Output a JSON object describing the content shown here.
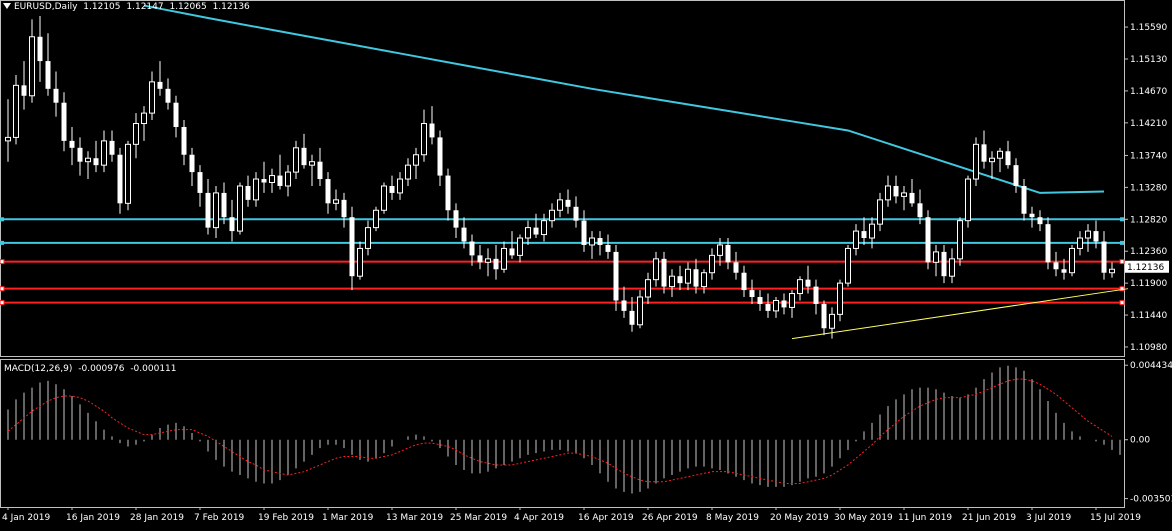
{
  "header": {
    "symbol": "EURUSD,Daily",
    "ohlc": [
      "1.12105",
      "1.12147",
      "1.12065",
      "1.12136"
    ]
  },
  "macd": {
    "label": "MACD(12,26,9)",
    "value1": "-0.000976",
    "value2": "-0.000111",
    "y_ticks": [
      "0.004434",
      "0.00",
      "-0.003501"
    ]
  },
  "current_price": "1.12136",
  "colors": {
    "background": "#000000",
    "grid": "#c0c0c0",
    "bull": "#ffffff",
    "bear": "#ffffff",
    "ma": "#40c8e0",
    "h_cyan": "#40c8e0",
    "h_red": "#ff2020",
    "trend": "#ffff60",
    "signal": "#ff2020"
  },
  "chart_data": {
    "type": "candlestick",
    "price_ticks": [
      "1.15590",
      "1.15130",
      "1.14670",
      "1.14210",
      "1.13740",
      "1.13280",
      "1.12820",
      "1.12360",
      "1.11900",
      "1.11440",
      "1.10980"
    ],
    "date_labels": [
      "4 Jan 2019",
      "16 Jan 2019",
      "28 Jan 2019",
      "7 Feb 2019",
      "19 Feb 2019",
      "1 Mar 2019",
      "13 Mar 2019",
      "25 Mar 2019",
      "4 Apr 2019",
      "16 Apr 2019",
      "26 Apr 2019",
      "8 May 2019",
      "20 May 2019",
      "30 May 2019",
      "11 Jun 2019",
      "21 Jun 2019",
      "3 Jul 2019",
      "15 Jul 2019"
    ],
    "date_index": [
      0,
      8,
      16,
      24,
      32,
      40,
      48,
      56,
      64,
      72,
      80,
      88,
      96,
      104,
      112,
      120,
      128,
      136
    ],
    "ohlc": [
      [
        1.1395,
        1.1455,
        1.1365,
        1.14
      ],
      [
        1.14,
        1.149,
        1.139,
        1.1475
      ],
      [
        1.1475,
        1.151,
        1.144,
        1.146
      ],
      [
        1.146,
        1.157,
        1.145,
        1.1545
      ],
      [
        1.1545,
        1.1575,
        1.148,
        1.151
      ],
      [
        1.151,
        1.155,
        1.146,
        1.147
      ],
      [
        1.147,
        1.1495,
        1.143,
        1.145
      ],
      [
        1.145,
        1.1465,
        1.138,
        1.1395
      ],
      [
        1.1395,
        1.1415,
        1.136,
        1.1385
      ],
      [
        1.1385,
        1.14,
        1.1345,
        1.1365
      ],
      [
        1.1365,
        1.138,
        1.134,
        1.137
      ],
      [
        1.137,
        1.1395,
        1.135,
        1.136
      ],
      [
        1.136,
        1.141,
        1.135,
        1.1395
      ],
      [
        1.1395,
        1.141,
        1.1365,
        1.1375
      ],
      [
        1.1375,
        1.1385,
        1.129,
        1.1305
      ],
      [
        1.1305,
        1.1395,
        1.1295,
        1.139
      ],
      [
        1.139,
        1.1435,
        1.137,
        1.142
      ],
      [
        1.142,
        1.1445,
        1.1395,
        1.1435
      ],
      [
        1.1435,
        1.1495,
        1.1425,
        1.148
      ],
      [
        1.148,
        1.151,
        1.146,
        1.147
      ],
      [
        1.147,
        1.1485,
        1.144,
        1.145
      ],
      [
        1.145,
        1.146,
        1.14,
        1.1415
      ],
      [
        1.1415,
        1.1425,
        1.136,
        1.1375
      ],
      [
        1.1375,
        1.1385,
        1.133,
        1.135
      ],
      [
        1.135,
        1.136,
        1.13,
        1.132
      ],
      [
        1.132,
        1.134,
        1.126,
        1.127
      ],
      [
        1.127,
        1.133,
        1.1255,
        1.132
      ],
      [
        1.132,
        1.1335,
        1.1275,
        1.1285
      ],
      [
        1.1285,
        1.131,
        1.125,
        1.1265
      ],
      [
        1.1265,
        1.1335,
        1.126,
        1.133
      ],
      [
        1.133,
        1.1345,
        1.13,
        1.131
      ],
      [
        1.131,
        1.135,
        1.13,
        1.134
      ],
      [
        1.134,
        1.1365,
        1.132,
        1.1335
      ],
      [
        1.1335,
        1.1355,
        1.132,
        1.1345
      ],
      [
        1.1345,
        1.1375,
        1.1325,
        1.133
      ],
      [
        1.133,
        1.136,
        1.1315,
        1.135
      ],
      [
        1.135,
        1.1395,
        1.134,
        1.1385
      ],
      [
        1.1385,
        1.1405,
        1.1355,
        1.136
      ],
      [
        1.136,
        1.1375,
        1.133,
        1.1365
      ],
      [
        1.1365,
        1.1385,
        1.133,
        1.134
      ],
      [
        1.134,
        1.135,
        1.129,
        1.1305
      ],
      [
        1.1305,
        1.1325,
        1.1295,
        1.131
      ],
      [
        1.131,
        1.132,
        1.127,
        1.1285
      ],
      [
        1.1285,
        1.13,
        1.118,
        1.12
      ],
      [
        1.12,
        1.125,
        1.1195,
        1.124
      ],
      [
        1.124,
        1.128,
        1.123,
        1.127
      ],
      [
        1.127,
        1.13,
        1.1265,
        1.1295
      ],
      [
        1.1295,
        1.1335,
        1.129,
        1.133
      ],
      [
        1.133,
        1.1345,
        1.131,
        1.132
      ],
      [
        1.132,
        1.135,
        1.131,
        1.134
      ],
      [
        1.134,
        1.137,
        1.133,
        1.136
      ],
      [
        1.136,
        1.1385,
        1.134,
        1.1375
      ],
      [
        1.1375,
        1.144,
        1.1365,
        1.142
      ],
      [
        1.142,
        1.1445,
        1.139,
        1.14
      ],
      [
        1.14,
        1.141,
        1.133,
        1.1345
      ],
      [
        1.1345,
        1.1355,
        1.128,
        1.1295
      ],
      [
        1.1295,
        1.1305,
        1.1255,
        1.127
      ],
      [
        1.127,
        1.1285,
        1.124,
        1.125
      ],
      [
        1.125,
        1.126,
        1.1215,
        1.123
      ],
      [
        1.123,
        1.1245,
        1.121,
        1.122
      ],
      [
        1.122,
        1.124,
        1.12,
        1.1225
      ],
      [
        1.1225,
        1.1245,
        1.1195,
        1.121
      ],
      [
        1.121,
        1.125,
        1.1205,
        1.124
      ],
      [
        1.124,
        1.1265,
        1.1225,
        1.123
      ],
      [
        1.123,
        1.126,
        1.122,
        1.1255
      ],
      [
        1.1255,
        1.128,
        1.1245,
        1.127
      ],
      [
        1.127,
        1.129,
        1.1255,
        1.126
      ],
      [
        1.126,
        1.129,
        1.125,
        1.128
      ],
      [
        1.128,
        1.1305,
        1.127,
        1.1295
      ],
      [
        1.1295,
        1.132,
        1.1285,
        1.131
      ],
      [
        1.131,
        1.1325,
        1.129,
        1.13
      ],
      [
        1.13,
        1.1315,
        1.127,
        1.128
      ],
      [
        1.128,
        1.1295,
        1.1235,
        1.1245
      ],
      [
        1.1245,
        1.1265,
        1.1225,
        1.1255
      ],
      [
        1.1255,
        1.1265,
        1.123,
        1.1245
      ],
      [
        1.1245,
        1.126,
        1.1225,
        1.1235
      ],
      [
        1.1235,
        1.1245,
        1.115,
        1.1165
      ],
      [
        1.1165,
        1.1185,
        1.114,
        1.115
      ],
      [
        1.115,
        1.117,
        1.112,
        1.113
      ],
      [
        1.113,
        1.118,
        1.1125,
        1.117
      ],
      [
        1.117,
        1.1205,
        1.116,
        1.1195
      ],
      [
        1.1195,
        1.1235,
        1.1185,
        1.1225
      ],
      [
        1.1225,
        1.1235,
        1.1175,
        1.1185
      ],
      [
        1.1185,
        1.121,
        1.117,
        1.12
      ],
      [
        1.12,
        1.1215,
        1.118,
        1.119
      ],
      [
        1.119,
        1.122,
        1.118,
        1.121
      ],
      [
        1.121,
        1.1225,
        1.1175,
        1.1185
      ],
      [
        1.1185,
        1.121,
        1.1175,
        1.1205
      ],
      [
        1.1205,
        1.124,
        1.1195,
        1.123
      ],
      [
        1.123,
        1.1255,
        1.1215,
        1.1245
      ],
      [
        1.1245,
        1.1255,
        1.121,
        1.122
      ],
      [
        1.122,
        1.1235,
        1.1195,
        1.1205
      ],
      [
        1.1205,
        1.1215,
        1.117,
        1.118
      ],
      [
        1.118,
        1.1195,
        1.116,
        1.117
      ],
      [
        1.117,
        1.118,
        1.115,
        1.116
      ],
      [
        1.116,
        1.1175,
        1.114,
        1.115
      ],
      [
        1.115,
        1.117,
        1.114,
        1.1165
      ],
      [
        1.1165,
        1.1175,
        1.1145,
        1.1155
      ],
      [
        1.1155,
        1.118,
        1.114,
        1.1175
      ],
      [
        1.1175,
        1.12,
        1.1165,
        1.1195
      ],
      [
        1.1195,
        1.1215,
        1.1175,
        1.1185
      ],
      [
        1.1185,
        1.1195,
        1.1145,
        1.116
      ],
      [
        1.116,
        1.1165,
        1.1115,
        1.1125
      ],
      [
        1.1125,
        1.1155,
        1.111,
        1.1145
      ],
      [
        1.1145,
        1.1195,
        1.1135,
        1.119
      ],
      [
        1.119,
        1.1245,
        1.1185,
        1.124
      ],
      [
        1.124,
        1.1275,
        1.123,
        1.1265
      ],
      [
        1.1265,
        1.1285,
        1.1245,
        1.1255
      ],
      [
        1.1255,
        1.1285,
        1.124,
        1.1275
      ],
      [
        1.1275,
        1.132,
        1.1265,
        1.131
      ],
      [
        1.131,
        1.1345,
        1.13,
        1.133
      ],
      [
        1.133,
        1.1345,
        1.1305,
        1.1315
      ],
      [
        1.1315,
        1.133,
        1.1295,
        1.132
      ],
      [
        1.132,
        1.134,
        1.13,
        1.1305
      ],
      [
        1.1305,
        1.1325,
        1.1275,
        1.1285
      ],
      [
        1.1285,
        1.1295,
        1.121,
        1.122
      ],
      [
        1.122,
        1.1245,
        1.12,
        1.1235
      ],
      [
        1.1235,
        1.1245,
        1.119,
        1.12
      ],
      [
        1.12,
        1.124,
        1.119,
        1.1225
      ],
      [
        1.1225,
        1.1285,
        1.1215,
        1.128
      ],
      [
        1.128,
        1.1345,
        1.127,
        1.134
      ],
      [
        1.134,
        1.14,
        1.133,
        1.139
      ],
      [
        1.139,
        1.141,
        1.1355,
        1.1365
      ],
      [
        1.1365,
        1.138,
        1.134,
        1.137
      ],
      [
        1.137,
        1.1385,
        1.135,
        1.138
      ],
      [
        1.138,
        1.1395,
        1.1355,
        1.136
      ],
      [
        1.136,
        1.137,
        1.132,
        1.133
      ],
      [
        1.133,
        1.134,
        1.128,
        1.129
      ],
      [
        1.129,
        1.13,
        1.127,
        1.1285
      ],
      [
        1.1285,
        1.1295,
        1.1265,
        1.1275
      ],
      [
        1.1275,
        1.1285,
        1.121,
        1.122
      ],
      [
        1.122,
        1.1235,
        1.12,
        1.121
      ],
      [
        1.121,
        1.1225,
        1.1195,
        1.1205
      ],
      [
        1.1205,
        1.1245,
        1.12,
        1.124
      ],
      [
        1.124,
        1.1265,
        1.123,
        1.1255
      ],
      [
        1.1255,
        1.1275,
        1.1235,
        1.1265
      ],
      [
        1.1265,
        1.128,
        1.124,
        1.125
      ],
      [
        1.125,
        1.1265,
        1.1195,
        1.1205
      ],
      [
        1.1205,
        1.122,
        1.1198,
        1.121
      ]
    ],
    "ma": [
      1.159,
      1.1572,
      1.1555,
      1.1538,
      1.1521,
      1.1504,
      1.1487,
      1.147,
      1.1455,
      1.144,
      1.1425,
      1.141,
      1.138,
      1.135,
      1.132,
      1.1322
    ],
    "ma_index": [
      17,
      25,
      33,
      41,
      49,
      57,
      65,
      73,
      81,
      89,
      97,
      105,
      113,
      121,
      129,
      137
    ],
    "h_lines_cyan": [
      1.1282,
      1.1248
    ],
    "h_lines_red": [
      1.1221,
      1.1182,
      1.1162
    ],
    "trendline": [
      [
        98,
        1.111
      ],
      [
        140,
        1.1182
      ]
    ],
    "macd_histogram": [
      0.0018,
      0.0024,
      0.0028,
      0.0031,
      0.0034,
      0.0035,
      0.0033,
      0.003,
      0.0026,
      0.0021,
      0.0016,
      0.0011,
      0.0006,
      0.0002,
      -0.0002,
      -0.0004,
      -0.0003,
      -0.0001,
      0.0003,
      0.0007,
      0.0009,
      0.001,
      0.0008,
      0.0004,
      -0.0001,
      -0.0007,
      -0.0012,
      -0.0016,
      -0.0019,
      -0.0021,
      -0.0023,
      -0.0025,
      -0.0026,
      -0.0026,
      -0.0024,
      -0.0021,
      -0.0017,
      -0.0013,
      -0.0009,
      -0.0005,
      -0.0003,
      -0.0003,
      -0.0005,
      -0.0009,
      -0.0012,
      -0.0013,
      -0.0011,
      -0.0008,
      -0.0004,
      0.0,
      0.0002,
      0.0003,
      0.0002,
      -0.0001,
      -0.0005,
      -0.001,
      -0.0015,
      -0.0018,
      -0.002,
      -0.002,
      -0.0019,
      -0.0017,
      -0.0015,
      -0.0013,
      -0.0011,
      -0.0009,
      -0.0008,
      -0.0007,
      -0.0006,
      -0.0006,
      -0.0007,
      -0.0008,
      -0.0011,
      -0.0015,
      -0.002,
      -0.0025,
      -0.0029,
      -0.0031,
      -0.0032,
      -0.0031,
      -0.0029,
      -0.0026,
      -0.0023,
      -0.0021,
      -0.0019,
      -0.0017,
      -0.0016,
      -0.0016,
      -0.0017,
      -0.0018,
      -0.002,
      -0.0022,
      -0.0024,
      -0.0026,
      -0.0027,
      -0.0028,
      -0.0028,
      -0.0028,
      -0.0027,
      -0.0025,
      -0.0023,
      -0.0022,
      -0.002,
      -0.0016,
      -0.0011,
      -0.0006,
      -0.0001,
      0.0005,
      0.001,
      0.0015,
      0.002,
      0.0024,
      0.0027,
      0.003,
      0.0031,
      0.0031,
      0.003,
      0.0028,
      0.0026,
      0.0025,
      0.0027,
      0.0031,
      0.0036,
      0.004,
      0.0043,
      0.0044,
      0.0043,
      0.0041,
      0.0036,
      0.003,
      0.0023,
      0.0016,
      0.001,
      0.0005,
      0.0002,
      0.0,
      -0.0001,
      -0.0003,
      -0.0006,
      -0.0009
    ],
    "macd_signal": [
      0.0005,
      0.0009,
      0.0013,
      0.0017,
      0.002,
      0.0023,
      0.0025,
      0.0026,
      0.0026,
      0.0025,
      0.0023,
      0.002,
      0.0017,
      0.0013,
      0.001,
      0.0007,
      0.0005,
      0.0003,
      0.0003,
      0.0004,
      0.0005,
      0.0006,
      0.0006,
      0.0006,
      0.0004,
      0.0002,
      -0.0001,
      -0.0004,
      -0.0007,
      -0.001,
      -0.0013,
      -0.0015,
      -0.0018,
      -0.0019,
      -0.002,
      -0.0021,
      -0.002,
      -0.0019,
      -0.0017,
      -0.0015,
      -0.0013,
      -0.0011,
      -0.001,
      -0.001,
      -0.001,
      -0.0011,
      -0.0011,
      -0.001,
      -0.0009,
      -0.0007,
      -0.0005,
      -0.0003,
      -0.0002,
      -0.0002,
      -0.0003,
      -0.0004,
      -0.0006,
      -0.0009,
      -0.0011,
      -0.0013,
      -0.0014,
      -0.0015,
      -0.0015,
      -0.0015,
      -0.0014,
      -0.0013,
      -0.0012,
      -0.0011,
      -0.001,
      -0.0009,
      -0.0008,
      -0.0008,
      -0.0009,
      -0.001,
      -0.0012,
      -0.0014,
      -0.0017,
      -0.002,
      -0.0022,
      -0.0024,
      -0.0025,
      -0.0025,
      -0.0025,
      -0.0024,
      -0.0023,
      -0.0022,
      -0.0021,
      -0.002,
      -0.0019,
      -0.0019,
      -0.0019,
      -0.002,
      -0.0021,
      -0.0022,
      -0.0023,
      -0.0024,
      -0.0025,
      -0.0026,
      -0.0026,
      -0.0026,
      -0.0025,
      -0.0024,
      -0.0023,
      -0.0021,
      -0.0018,
      -0.0015,
      -0.0011,
      -0.0007,
      -0.0003,
      0.0002,
      0.0006,
      0.001,
      0.0014,
      0.0017,
      0.002,
      0.0022,
      0.0024,
      0.0025,
      0.0025,
      0.0025,
      0.0026,
      0.0027,
      0.0029,
      0.0031,
      0.0033,
      0.0035,
      0.0036,
      0.0036,
      0.0035,
      0.0033,
      0.003,
      0.0027,
      0.0023,
      0.0019,
      0.0015,
      0.0011,
      0.0008,
      0.0005,
      0.0002
    ],
    "price_range": [
      1.1085,
      1.1598
    ],
    "macd_range": [
      -0.004,
      0.0048
    ]
  }
}
